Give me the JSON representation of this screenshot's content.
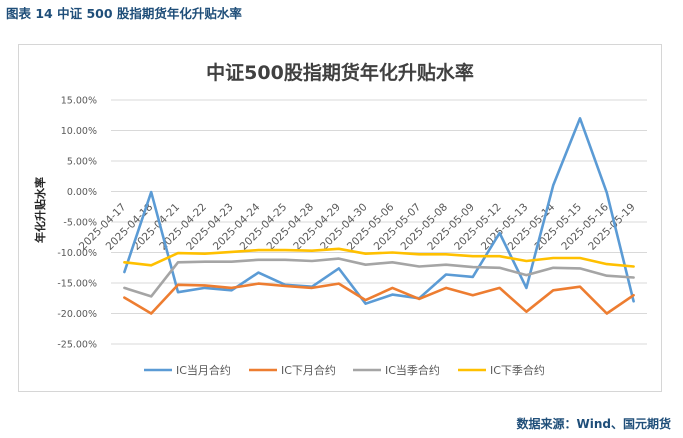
{
  "figure_caption": "图表 14  中证 500 股指期货年化升贴水率",
  "source_note": "数据来源：Wind、国元期货",
  "colors": {
    "IC当月合约": "#5b9bd5",
    "IC下月合约": "#ed7d31",
    "IC当季合约": "#a5a5a5",
    "IC下季合约": "#ffc000",
    "grid": "#d9d9d9",
    "text": "#595959"
  },
  "chart_data": {
    "type": "line",
    "title": "中证500股指期货年化升贴水率",
    "ylabel": "年化升贴水率",
    "xlabel": "",
    "ylim": [
      -25,
      15
    ],
    "y_step": 5,
    "y_tick_labels": [
      "15.00%",
      "10.00%",
      "5.00%",
      "0.00%",
      "-5.00%",
      "-10.00%",
      "-15.00%",
      "-20.00%",
      "-25.00%"
    ],
    "grid": "horizontal",
    "legend_position": "bottom",
    "categories": [
      "2025-04-17",
      "2025-04-18",
      "2025-04-21",
      "2025-04-22",
      "2025-04-23",
      "2025-04-24",
      "2025-04-25",
      "2025-04-28",
      "2025-04-29",
      "2025-04-30",
      "2025-05-06",
      "2025-05-07",
      "2025-05-08",
      "2025-05-09",
      "2025-05-12",
      "2025-05-13",
      "2025-05-14",
      "2025-05-15",
      "2025-05-16",
      "2025-05-19"
    ],
    "series": [
      {
        "name": "IC当月合约",
        "values": [
          -13.2,
          -0.1,
          -16.5,
          -15.8,
          -16.2,
          -13.3,
          -15.3,
          -15.6,
          -12.6,
          -18.4,
          -16.9,
          -17.5,
          -13.6,
          -14.0,
          -6.8,
          -15.8,
          1.0,
          12.0,
          -0.2,
          -18.0
        ]
      },
      {
        "name": "IC下月合约",
        "values": [
          -17.4,
          -20.0,
          -15.3,
          -15.4,
          -15.8,
          -15.1,
          -15.5,
          -15.8,
          -15.1,
          -17.8,
          -15.8,
          -17.6,
          -15.8,
          -17.0,
          -15.8,
          -19.7,
          -16.2,
          -15.6,
          -20.0,
          -17.0
        ]
      },
      {
        "name": "IC当季合约",
        "values": [
          -15.8,
          -17.2,
          -11.6,
          -11.5,
          -11.5,
          -11.2,
          -11.2,
          -11.4,
          -11.0,
          -12.0,
          -11.6,
          -12.3,
          -12.0,
          -12.4,
          -12.5,
          -13.7,
          -12.5,
          -12.6,
          -13.8,
          -14.1
        ]
      },
      {
        "name": "IC下季合约",
        "values": [
          -11.6,
          -12.1,
          -10.1,
          -10.2,
          -9.9,
          -9.6,
          -9.6,
          -9.7,
          -9.4,
          -10.2,
          -10.0,
          -10.3,
          -10.3,
          -10.6,
          -10.6,
          -11.4,
          -10.9,
          -10.9,
          -11.9,
          -12.3
        ]
      }
    ]
  }
}
